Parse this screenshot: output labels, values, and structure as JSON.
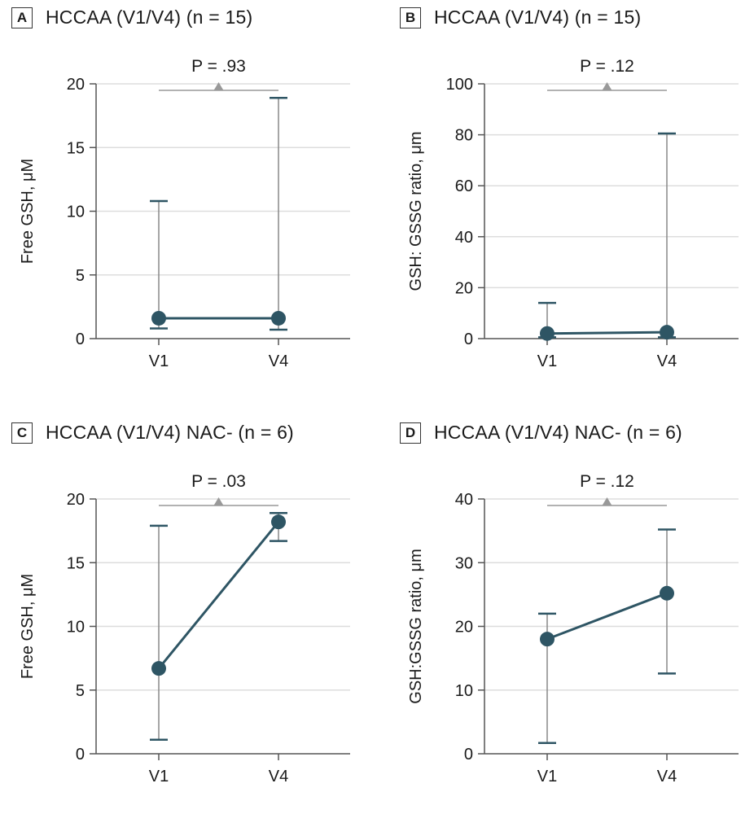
{
  "colors": {
    "series": "#2e5564",
    "whisker": "#888888",
    "grid": "#dddddd",
    "axis": "#555555",
    "pbar": "#999999"
  },
  "chart_data": [
    {
      "type": "line",
      "panel_letter": "A",
      "title": "HCCAA (V1/V4) (n = 15)",
      "ylabel": "Free GSH, μM",
      "xlabel": "",
      "categories": [
        "V1",
        "V4"
      ],
      "ylim": [
        0,
        20
      ],
      "yticks": [
        0,
        5,
        10,
        15,
        20
      ],
      "values": [
        1.6,
        1.6
      ],
      "err_low": [
        0.8,
        0.7
      ],
      "err_high": [
        10.8,
        18.9
      ],
      "p_value": "P = .93",
      "grid": true
    },
    {
      "type": "line",
      "panel_letter": "B",
      "title": "HCCAA (V1/V4) (n = 15)",
      "ylabel": "GSH: GSSG ratio, μm",
      "xlabel": "",
      "categories": [
        "V1",
        "V4"
      ],
      "ylim": [
        0,
        100
      ],
      "yticks": [
        0,
        20,
        40,
        60,
        80,
        100
      ],
      "values": [
        2.0,
        2.5
      ],
      "err_low": [
        0.5,
        0.5
      ],
      "err_high": [
        14.0,
        80.5
      ],
      "p_value": "P = .12",
      "grid": true
    },
    {
      "type": "line",
      "panel_letter": "C",
      "title": "HCCAA (V1/V4) NAC- (n = 6)",
      "ylabel": "Free GSH, μM",
      "xlabel": "",
      "categories": [
        "V1",
        "V4"
      ],
      "ylim": [
        0,
        20
      ],
      "yticks": [
        0,
        5,
        10,
        15,
        20
      ],
      "values": [
        6.7,
        18.2
      ],
      "err_low": [
        1.1,
        16.7
      ],
      "err_high": [
        17.9,
        18.9
      ],
      "p_value": "P = .03",
      "grid": true
    },
    {
      "type": "line",
      "panel_letter": "D",
      "title": "HCCAA (V1/V4) NAC- (n = 6)",
      "ylabel": "GSH:GSSG ratio, μm",
      "xlabel": "",
      "categories": [
        "V1",
        "V4"
      ],
      "ylim": [
        0,
        40
      ],
      "yticks": [
        0,
        10,
        20,
        30,
        40
      ],
      "values": [
        18.0,
        25.2
      ],
      "err_low": [
        1.7,
        12.6
      ],
      "err_high": [
        22.0,
        35.2
      ],
      "p_value": "P = .12",
      "grid": true
    }
  ]
}
